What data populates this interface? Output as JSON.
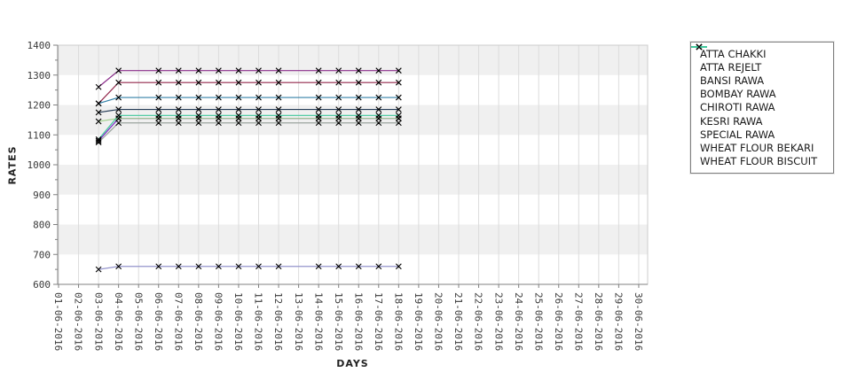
{
  "figure": {
    "background": "#ffffff",
    "band_color": "#f0f0f0",
    "grid_color": "#dcdcdc",
    "frame_color": "#cccccc",
    "axis_color": "#808080",
    "tick_label_color": "#3a3a3a",
    "marker_color": "#000000"
  },
  "chart_data": {
    "type": "line",
    "title": "",
    "xlabel": "DAYS",
    "ylabel": "RATES",
    "ylim": [
      600,
      1400
    ],
    "y_major_step": 100,
    "y_minor_step": 50,
    "y_tick_labels": [
      "600",
      "700",
      "800",
      "900",
      "1000",
      "1100",
      "1200",
      "1300",
      "1400"
    ],
    "grid": "vertical daily gridlines with alternating horizontal bands",
    "legend_position": "right",
    "marker": "x",
    "x_tick_labels": [
      "01-06-2016",
      "02-06-2016",
      "03-06-2016",
      "04-06-2016",
      "05-06-2016",
      "06-06-2016",
      "07-06-2016",
      "08-06-2016",
      "09-06-2016",
      "10-06-2016",
      "11-06-2016",
      "12-06-2016",
      "13-06-2016",
      "14-06-2016",
      "15-06-2016",
      "16-06-2016",
      "17-06-2016",
      "18-06-2016",
      "19-06-2016",
      "20-06-2016",
      "21-06-2016",
      "22-06-2016",
      "23-06-2016",
      "24-06-2016",
      "25-06-2016",
      "26-06-2016",
      "27-06-2016",
      "28-06-2016",
      "29-06-2016",
      "30-06-2016"
    ],
    "data_days": [
      3,
      4,
      6,
      7,
      8,
      9,
      10,
      11,
      12,
      14,
      15,
      16,
      17,
      18
    ],
    "series": [
      {
        "name": "ATTA CHAKKI",
        "color": "#9aa49e",
        "values": [
          1075,
          1140,
          1140,
          1140,
          1140,
          1140,
          1140,
          1140,
          1140,
          1140,
          1140,
          1140,
          1140,
          1140
        ]
      },
      {
        "name": "ATTA REJELT",
        "color": "#7a22c4",
        "values": [
          1080,
          1155,
          1155,
          1155,
          1155,
          1155,
          1155,
          1155,
          1155,
          1155,
          1155,
          1155,
          1155,
          1155
        ]
      },
      {
        "name": "BANSI RAWA",
        "color": "#253c57",
        "values": [
          1175,
          1185,
          1185,
          1185,
          1185,
          1185,
          1185,
          1185,
          1185,
          1185,
          1185,
          1185,
          1185,
          1185
        ]
      },
      {
        "name": "BOMBAY RAWA",
        "color": "#8b2e8b",
        "values": [
          1260,
          1315,
          1315,
          1315,
          1315,
          1315,
          1315,
          1315,
          1315,
          1315,
          1315,
          1315,
          1315,
          1315
        ]
      },
      {
        "name": "CHIROTI RAWA",
        "color": "#3381a8",
        "values": [
          1205,
          1225,
          1225,
          1225,
          1225,
          1225,
          1225,
          1225,
          1225,
          1225,
          1225,
          1225,
          1225,
          1225
        ]
      },
      {
        "name": "KESRI RAWA",
        "color": "#a2d08e",
        "values": [
          1145,
          1155,
          1155,
          1155,
          1155,
          1155,
          1155,
          1155,
          1155,
          1155,
          1155,
          1155,
          1155,
          1155
        ]
      },
      {
        "name": "SPECIAL RAWA",
        "color": "#9494cc",
        "values": [
          650,
          660,
          660,
          660,
          660,
          660,
          660,
          660,
          660,
          660,
          660,
          660,
          660,
          660
        ]
      },
      {
        "name": "WHEAT FLOUR BEKARI",
        "color": "#93294d",
        "values": [
          1205,
          1275,
          1275,
          1275,
          1275,
          1275,
          1275,
          1275,
          1275,
          1275,
          1275,
          1275,
          1275,
          1275
        ]
      },
      {
        "name": "WHEAT FLOUR BISCUIT",
        "color": "#41c89c",
        "values": [
          1085,
          1165,
          1165,
          1165,
          1165,
          1165,
          1165,
          1165,
          1165,
          1165,
          1165,
          1165,
          1165,
          1165
        ]
      }
    ]
  }
}
